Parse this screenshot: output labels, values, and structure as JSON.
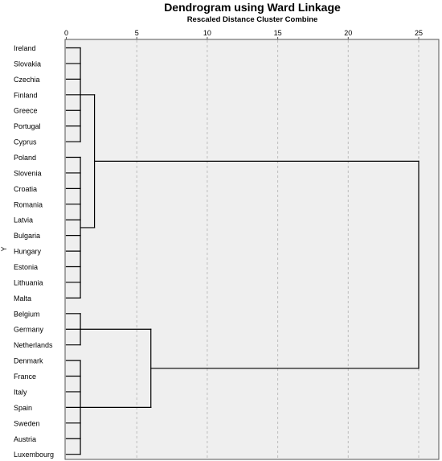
{
  "chart_data": {
    "type": "dendrogram",
    "title": "Dendrogram using Ward Linkage",
    "subtitle": "Rescaled Distance Cluster Combine",
    "ylabel": "Y",
    "xlim": [
      0,
      25
    ],
    "x_ticks": [
      0,
      5,
      10,
      15,
      20,
      25
    ],
    "grid": true,
    "leaves": [
      "Ireland",
      "Slovakia",
      "Czechia",
      "Finland",
      "Greece",
      "Portugal",
      "Cyprus",
      "Poland",
      "Slovenia",
      "Croatia",
      "Romania",
      "Latvia",
      "Bulgaria",
      "Hungary",
      "Estonia",
      "Lithuania",
      "Malta",
      "Belgium",
      "Germany",
      "Netherlands",
      "Denmark",
      "France",
      "Italy",
      "Spain",
      "Sweden",
      "Austria",
      "Luxembourg"
    ],
    "clusters": [
      {
        "members": [
          0,
          1,
          2,
          3,
          4,
          5,
          6
        ],
        "distance": 1
      },
      {
        "members": [
          7,
          8,
          9,
          10,
          11,
          12,
          13,
          14,
          15,
          16
        ],
        "distance": 1
      },
      {
        "members": [
          17,
          18,
          19
        ],
        "distance": 1
      },
      {
        "members": [
          20,
          21,
          22,
          23,
          24,
          25,
          26
        ],
        "distance": 1
      }
    ],
    "merges": [
      {
        "left": "c0",
        "right": "c1",
        "distance": 2
      },
      {
        "left": "c2",
        "right": "c3",
        "distance": 6
      },
      {
        "left": "m0",
        "right": "m1",
        "distance": 25
      }
    ]
  }
}
